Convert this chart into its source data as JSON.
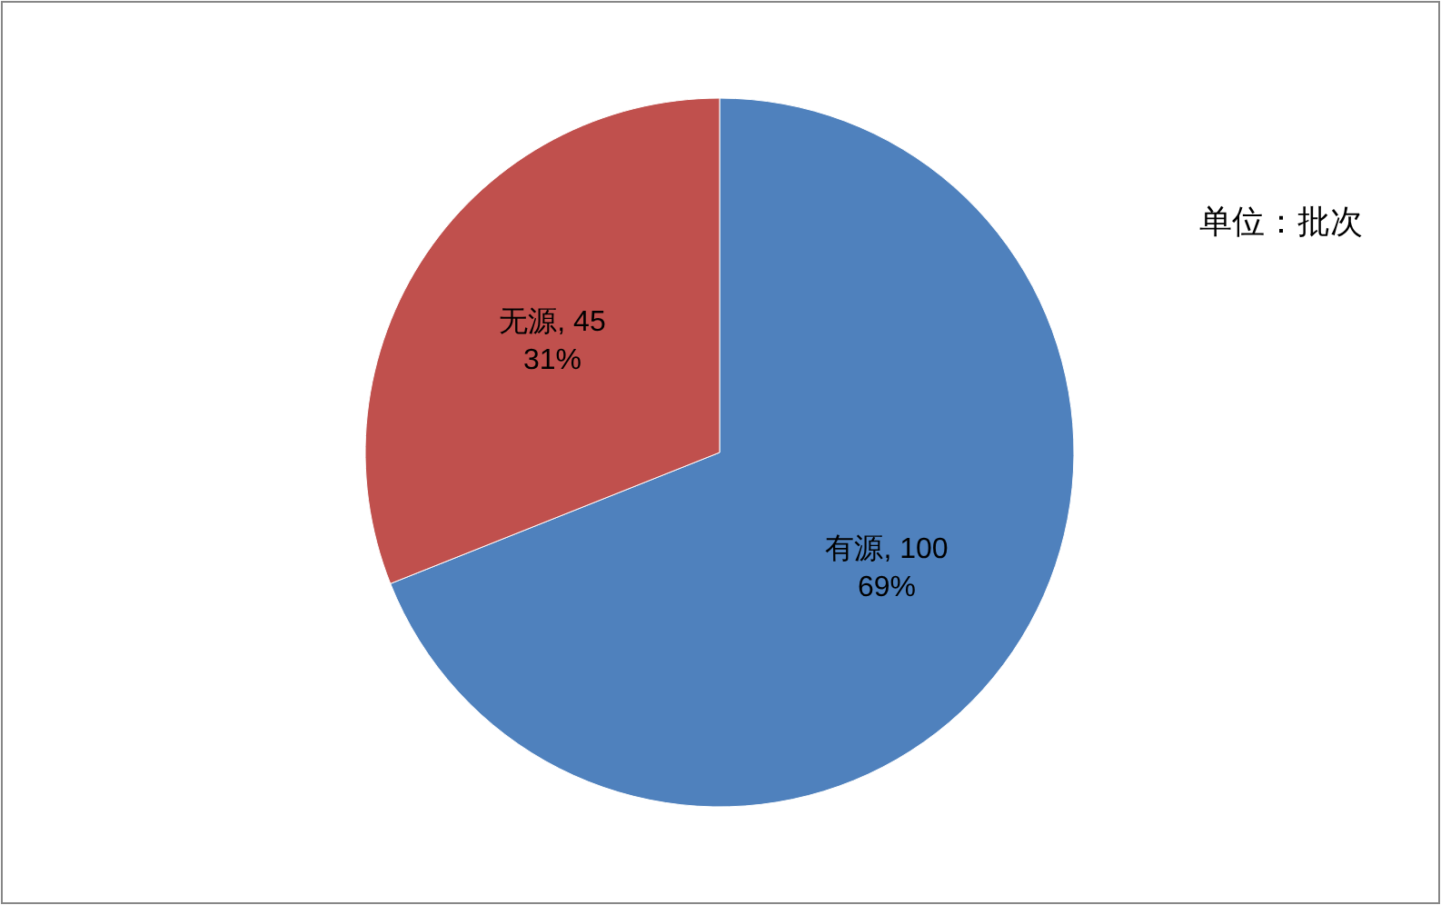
{
  "chart_data": {
    "type": "pie",
    "categories": [
      "有源",
      "无源"
    ],
    "values": [
      100,
      45
    ],
    "colors": [
      "#4f81bd",
      "#c0504d"
    ],
    "value_labels": [
      ", 100\n69%",
      ", 45\n31%"
    ],
    "data_labels": true,
    "annotations": [
      "单位：批次"
    ],
    "legend": false
  }
}
